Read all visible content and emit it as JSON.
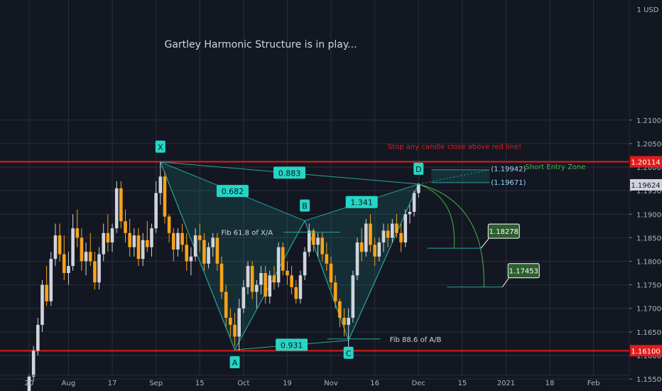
{
  "chart_data": {
    "type": "candlestick",
    "title": "Gartley Harmonic Structure is in play...",
    "currency_label": "USD",
    "currency_prefix": "1",
    "y_ticks": [
      1.21,
      1.205,
      1.2,
      1.195,
      1.19,
      1.185,
      1.18,
      1.175,
      1.17,
      1.165,
      1.16,
      1.155
    ],
    "ylim": [
      1.1535,
      1.214
    ],
    "x_ticks": [
      {
        "label": "20",
        "bar": 0
      },
      {
        "label": "Aug",
        "bar": 9
      },
      {
        "label": "17",
        "bar": 19
      },
      {
        "label": "Sep",
        "bar": 29
      },
      {
        "label": "15",
        "bar": 39
      },
      {
        "label": "Oct",
        "bar": 49
      },
      {
        "label": "19",
        "bar": 59
      },
      {
        "label": "Nov",
        "bar": 69
      },
      {
        "label": "16",
        "bar": 79
      },
      {
        "label": "Dec",
        "bar": 89
      },
      {
        "label": "15",
        "bar": 99
      },
      {
        "label": "2021",
        "bar": 109
      },
      {
        "label": "18",
        "bar": 119
      },
      {
        "label": "Feb",
        "bar": 129
      }
    ],
    "candles": [
      [
        1.1505,
        1.156,
        1.149,
        1.1555
      ],
      [
        1.1555,
        1.162,
        1.1545,
        1.161
      ],
      [
        1.161,
        1.168,
        1.16,
        1.1665
      ],
      [
        1.1665,
        1.176,
        1.165,
        1.175
      ],
      [
        1.175,
        1.179,
        1.1705,
        1.1715
      ],
      [
        1.1715,
        1.182,
        1.1705,
        1.1805
      ],
      [
        1.1805,
        1.188,
        1.179,
        1.1855
      ],
      [
        1.1855,
        1.188,
        1.18,
        1.1815
      ],
      [
        1.1815,
        1.1855,
        1.176,
        1.1775
      ],
      [
        1.1775,
        1.182,
        1.175,
        1.179
      ],
      [
        1.179,
        1.19,
        1.178,
        1.187
      ],
      [
        1.187,
        1.191,
        1.183,
        1.185
      ],
      [
        1.185,
        1.187,
        1.178,
        1.18
      ],
      [
        1.18,
        1.184,
        1.177,
        1.182
      ],
      [
        1.182,
        1.186,
        1.179,
        1.18
      ],
      [
        1.18,
        1.182,
        1.174,
        1.1755
      ],
      [
        1.1755,
        1.183,
        1.174,
        1.1815
      ],
      [
        1.1815,
        1.188,
        1.18,
        1.186
      ],
      [
        1.186,
        1.19,
        1.182,
        1.184
      ],
      [
        1.184,
        1.188,
        1.182,
        1.187
      ],
      [
        1.187,
        1.197,
        1.186,
        1.1955
      ],
      [
        1.1955,
        1.197,
        1.187,
        1.1885
      ],
      [
        1.1885,
        1.191,
        1.184,
        1.186
      ],
      [
        1.186,
        1.189,
        1.181,
        1.183
      ],
      [
        1.183,
        1.187,
        1.181,
        1.1855
      ],
      [
        1.1855,
        1.187,
        1.179,
        1.1805
      ],
      [
        1.1805,
        1.186,
        1.179,
        1.1845
      ],
      [
        1.1845,
        1.1885,
        1.182,
        1.183
      ],
      [
        1.183,
        1.188,
        1.181,
        1.187
      ],
      [
        1.187,
        1.197,
        1.186,
        1.1945
      ],
      [
        1.1945,
        1.2011,
        1.192,
        1.198
      ],
      [
        1.198,
        1.199,
        1.188,
        1.1895
      ],
      [
        1.1895,
        1.19,
        1.184,
        1.186
      ],
      [
        1.186,
        1.187,
        1.18,
        1.1825
      ],
      [
        1.1825,
        1.187,
        1.181,
        1.186
      ],
      [
        1.186,
        1.188,
        1.182,
        1.1835
      ],
      [
        1.1835,
        1.186,
        1.178,
        1.18
      ],
      [
        1.18,
        1.183,
        1.177,
        1.181
      ],
      [
        1.181,
        1.187,
        1.18,
        1.1855
      ],
      [
        1.1855,
        1.188,
        1.182,
        1.1845
      ],
      [
        1.1845,
        1.186,
        1.178,
        1.1795
      ],
      [
        1.1795,
        1.184,
        1.1785,
        1.183
      ],
      [
        1.183,
        1.186,
        1.181,
        1.185
      ],
      [
        1.185,
        1.186,
        1.178,
        1.1795
      ],
      [
        1.1795,
        1.181,
        1.172,
        1.1735
      ],
      [
        1.1735,
        1.175,
        1.166,
        1.168
      ],
      [
        1.168,
        1.17,
        1.164,
        1.1665
      ],
      [
        1.1665,
        1.169,
        1.162,
        1.164
      ],
      [
        1.164,
        1.172,
        1.161,
        1.17
      ],
      [
        1.17,
        1.176,
        1.169,
        1.1745
      ],
      [
        1.1745,
        1.18,
        1.173,
        1.179
      ],
      [
        1.179,
        1.18,
        1.172,
        1.1735
      ],
      [
        1.1735,
        1.176,
        1.17,
        1.175
      ],
      [
        1.175,
        1.179,
        1.173,
        1.1775
      ],
      [
        1.1775,
        1.179,
        1.171,
        1.1725
      ],
      [
        1.1725,
        1.178,
        1.171,
        1.177
      ],
      [
        1.177,
        1.179,
        1.174,
        1.1755
      ],
      [
        1.1755,
        1.184,
        1.1745,
        1.183
      ],
      [
        1.183,
        1.184,
        1.177,
        1.178
      ],
      [
        1.178,
        1.18,
        1.175,
        1.177
      ],
      [
        1.177,
        1.179,
        1.173,
        1.1745
      ],
      [
        1.1745,
        1.176,
        1.171,
        1.172
      ],
      [
        1.172,
        1.178,
        1.171,
        1.177
      ],
      [
        1.177,
        1.183,
        1.176,
        1.182
      ],
      [
        1.182,
        1.188,
        1.181,
        1.1865
      ],
      [
        1.1865,
        1.187,
        1.182,
        1.1835
      ],
      [
        1.1835,
        1.186,
        1.181,
        1.185
      ],
      [
        1.185,
        1.186,
        1.18,
        1.1815
      ],
      [
        1.1815,
        1.184,
        1.178,
        1.1795
      ],
      [
        1.1795,
        1.181,
        1.174,
        1.1755
      ],
      [
        1.1755,
        1.177,
        1.17,
        1.1715
      ],
      [
        1.1715,
        1.172,
        1.166,
        1.168
      ],
      [
        1.168,
        1.17,
        1.164,
        1.1665
      ],
      [
        1.1665,
        1.17,
        1.1602,
        1.168
      ],
      [
        1.168,
        1.178,
        1.167,
        1.177
      ],
      [
        1.177,
        1.185,
        1.176,
        1.184
      ],
      [
        1.184,
        1.187,
        1.18,
        1.182
      ],
      [
        1.182,
        1.189,
        1.181,
        1.188
      ],
      [
        1.188,
        1.19,
        1.182,
        1.1835
      ],
      [
        1.1835,
        1.185,
        1.179,
        1.181
      ],
      [
        1.181,
        1.185,
        1.18,
        1.184
      ],
      [
        1.184,
        1.188,
        1.182,
        1.1865
      ],
      [
        1.1865,
        1.188,
        1.183,
        1.185
      ],
      [
        1.185,
        1.189,
        1.184,
        1.188
      ],
      [
        1.188,
        1.19,
        1.185,
        1.186
      ],
      [
        1.186,
        1.188,
        1.182,
        1.184
      ],
      [
        1.184,
        1.191,
        1.183,
        1.19
      ],
      [
        1.19,
        1.192,
        1.188,
        1.1905
      ],
      [
        1.1905,
        1.195,
        1.1895,
        1.1945
      ],
      [
        1.1945,
        1.1966,
        1.1935,
        1.1962
      ]
    ],
    "colors": {
      "up": "#d1d4dc",
      "down": "#f7a21b",
      "background": "#131722",
      "grid": "#2a2e39",
      "pattern": "#26a69a",
      "level": "#e01c1c",
      "label_bg": "#26d5c6"
    },
    "horizontal_lines": [
      {
        "value": 1.20114,
        "label": "1.20114",
        "color": "#e01c1c"
      },
      {
        "value": 1.161,
        "label": "1.16100",
        "color": "#e01c1c"
      }
    ],
    "last_price": {
      "value": 1.19624,
      "label": "1.19624"
    },
    "pattern": {
      "name": "Gartley",
      "points": [
        {
          "name": "X",
          "bar": 30,
          "value": 1.2011
        },
        {
          "name": "A",
          "bar": 47,
          "value": 1.1612
        },
        {
          "name": "B",
          "bar": 63,
          "value": 1.1886
        },
        {
          "name": "C",
          "bar": 73,
          "value": 1.1632
        },
        {
          "name": "D",
          "bar": 89,
          "value": 1.1964
        }
      ],
      "ratios": [
        {
          "label": "0.682",
          "from": "X",
          "to": "B"
        },
        {
          "label": "0.931",
          "from": "A",
          "to": "C"
        },
        {
          "label": "1.341",
          "from": "B",
          "to": "D"
        },
        {
          "label": "0.883",
          "from": "X",
          "to": "D"
        }
      ]
    },
    "annotations": {
      "fib_xa": "Fib 61.8 of X/A",
      "fib_ab": "Fib 88.6 of A/B",
      "stop_note": "Stop any candle close above red line!",
      "entry_zone": "Short Entry Zone",
      "entry_high": "(1.19942)",
      "entry_low": "(1.19671)",
      "entry_high_value": 1.19942,
      "entry_low_value": 1.19671,
      "target_1": "1.18278",
      "target_1_value": 1.18278,
      "target_2": "1.17453",
      "target_2_value": 1.17453
    }
  }
}
